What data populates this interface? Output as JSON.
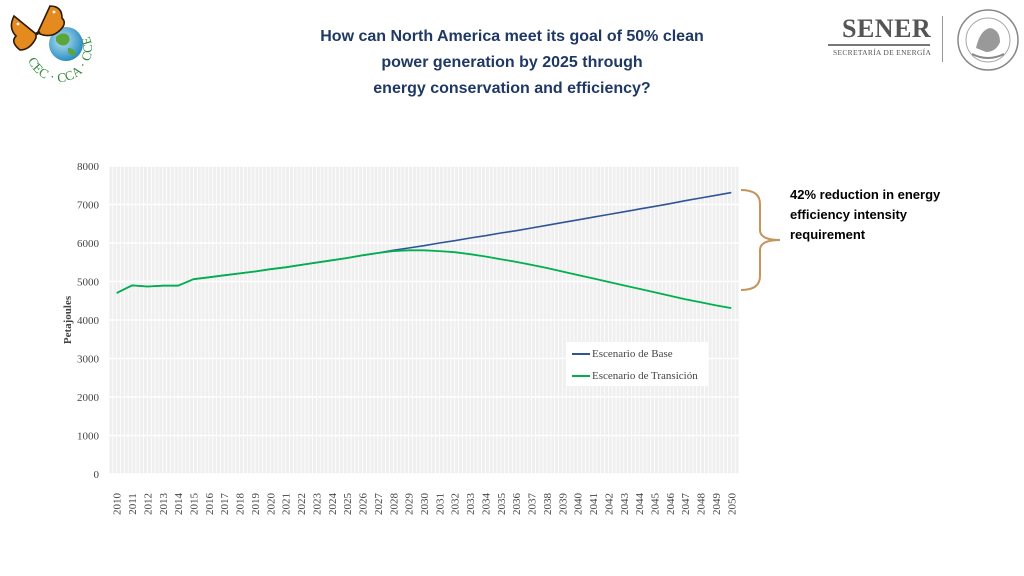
{
  "header": {
    "title_lines": [
      "How can North America meet its goal of 50% clean",
      "power generation by 2025 through",
      "energy conservation and efficiency?"
    ]
  },
  "logos": {
    "left_text": "CEC · CCA · CCE",
    "right_name": "SENER",
    "right_sub": "SECRETARÍA DE ENERGÍA"
  },
  "annotation": {
    "lines": [
      "42% reduction in energy",
      "efficiency intensity",
      "requirement"
    ]
  },
  "chart_data": {
    "type": "line",
    "title": "",
    "ylabel": "Petajoules",
    "xlabel": "",
    "ylim": [
      0,
      8000
    ],
    "yticks": [
      "0",
      "1000",
      "2000",
      "3000",
      "4000",
      "5000",
      "6000",
      "7000",
      "8000"
    ],
    "x": [
      "2010",
      "2011",
      "2012",
      "2013",
      "2014",
      "2015",
      "2016",
      "2017",
      "2018",
      "2019",
      "2020",
      "2021",
      "2022",
      "2023",
      "2024",
      "2025",
      "2026",
      "2027",
      "2028",
      "2029",
      "2030",
      "2031",
      "2032",
      "2033",
      "2034",
      "2035",
      "2036",
      "2037",
      "2038",
      "2039",
      "2040",
      "2041",
      "2042",
      "2043",
      "2044",
      "2045",
      "2046",
      "2047",
      "2048",
      "2049",
      "2050"
    ],
    "grid": true,
    "legend_position": "lower-right",
    "series": [
      {
        "name": "Escenario de Base",
        "color": "#2f5597",
        "values": [
          4700,
          4900,
          4870,
          4890,
          4890,
          5060,
          5110,
          5160,
          5210,
          5260,
          5320,
          5370,
          5430,
          5490,
          5550,
          5610,
          5680,
          5740,
          5810,
          5870,
          5930,
          6000,
          6060,
          6130,
          6190,
          6260,
          6320,
          6390,
          6460,
          6530,
          6600,
          6670,
          6740,
          6810,
          6880,
          6950,
          7020,
          7100,
          7170,
          7240,
          7310
        ]
      },
      {
        "name": "Escenario de Transición",
        "color": "#00b050",
        "values": [
          4700,
          4900,
          4870,
          4890,
          4890,
          5060,
          5110,
          5160,
          5210,
          5260,
          5320,
          5370,
          5430,
          5490,
          5550,
          5610,
          5680,
          5740,
          5790,
          5810,
          5810,
          5790,
          5760,
          5710,
          5650,
          5580,
          5510,
          5430,
          5350,
          5260,
          5170,
          5080,
          4990,
          4900,
          4810,
          4720,
          4630,
          4540,
          4460,
          4380,
          4310
        ]
      }
    ]
  }
}
